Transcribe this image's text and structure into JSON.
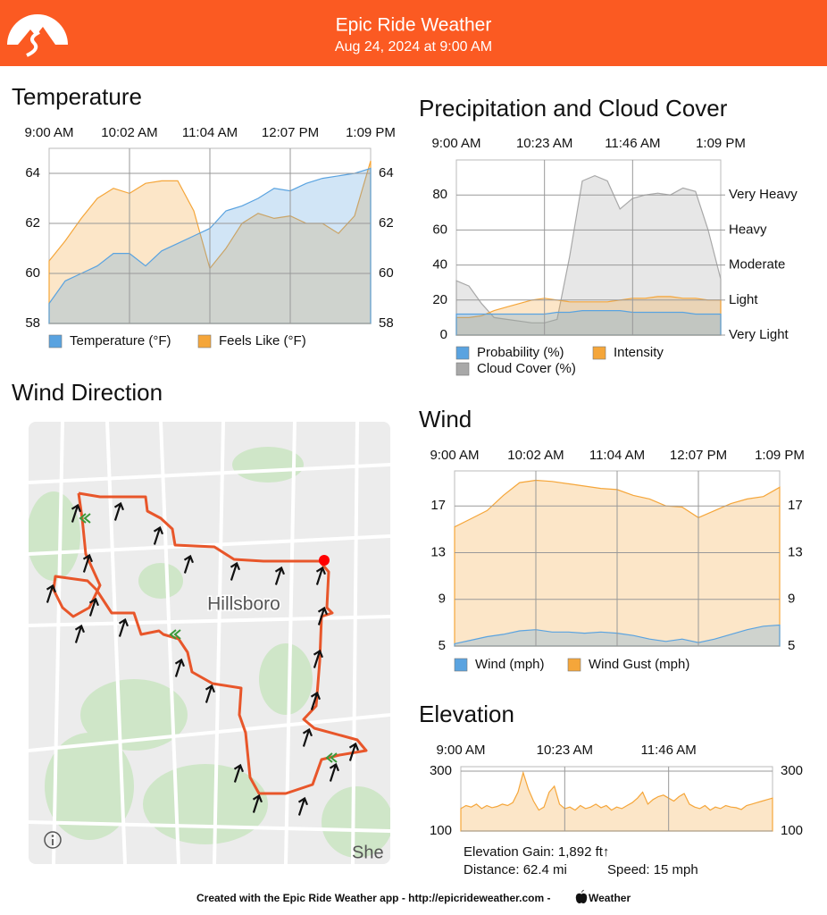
{
  "header": {
    "title": "Epic Ride Weather",
    "subtitle": "Aug 24, 2024 at 9:00 AM"
  },
  "chart_data": [
    {
      "type": "area",
      "title": "Temperature",
      "categories": [
        "9:00 AM",
        null,
        null,
        null,
        null,
        "10:02 AM",
        null,
        null,
        null,
        null,
        "11:04 AM",
        null,
        null,
        null,
        null,
        "12:07 PM",
        null,
        null,
        null,
        null,
        "1:09 PM"
      ],
      "ylim": [
        58,
        65
      ],
      "yticks": [
        58,
        60,
        62,
        64
      ],
      "grid": true,
      "series": [
        {
          "name": "Temperature (°F)",
          "color": "#5aa3e0",
          "values": [
            58.8,
            59.7,
            60.0,
            60.3,
            60.8,
            60.8,
            60.3,
            60.9,
            61.2,
            61.5,
            61.8,
            62.5,
            62.7,
            63.0,
            63.4,
            63.3,
            63.6,
            63.8,
            63.9,
            64.0,
            64.2
          ]
        },
        {
          "name": "Feels Like (°F)",
          "color": "#f5a63a",
          "values": [
            60.5,
            61.3,
            62.2,
            63.0,
            63.4,
            63.2,
            63.6,
            63.7,
            63.7,
            62.5,
            60.2,
            61.0,
            62.0,
            62.4,
            62.2,
            62.3,
            62.0,
            62.0,
            61.6,
            62.3,
            64.5
          ]
        }
      ]
    },
    {
      "type": "area",
      "title": "Precipitation and Cloud Cover",
      "categories": [
        "9:00 AM",
        null,
        null,
        null,
        null,
        null,
        null,
        "10:23 AM",
        null,
        null,
        null,
        null,
        null,
        null,
        "11:46 AM",
        null,
        null,
        null,
        null,
        null,
        null,
        "1:09 PM"
      ],
      "ylim": [
        0,
        100
      ],
      "yticks": [
        0,
        20,
        40,
        60,
        80
      ],
      "y2lim": [
        0,
        100
      ],
      "y2ticks": [
        {
          "value": 0,
          "label": "Very Light"
        },
        {
          "value": 20,
          "label": "Light"
        },
        {
          "value": 40,
          "label": "Moderate"
        },
        {
          "value": 60,
          "label": "Heavy"
        },
        {
          "value": 80,
          "label": "Very Heavy"
        }
      ],
      "grid": true,
      "series": [
        {
          "name": "Probability (%)",
          "color": "#5aa3e0",
          "values": [
            12,
            12,
            12,
            12,
            12,
            12,
            12,
            12,
            13,
            13,
            14,
            14,
            14,
            14,
            13,
            13,
            13,
            13,
            13,
            12,
            12,
            12
          ]
        },
        {
          "name": "Intensity",
          "color": "#f5a63a",
          "axis": "y2",
          "values": [
            10,
            10,
            11,
            14,
            16,
            18,
            20,
            21,
            20,
            19,
            19,
            19,
            19,
            20,
            21,
            21,
            22,
            22,
            21,
            21,
            20,
            20
          ]
        },
        {
          "name": "Cloud Cover (%)",
          "color": "#a8a8a8",
          "values": [
            31,
            28,
            18,
            10,
            9,
            8,
            7,
            7,
            9,
            45,
            88,
            91,
            88,
            72,
            78,
            80,
            81,
            80,
            84,
            82,
            60,
            32
          ]
        }
      ]
    },
    {
      "type": "area",
      "title": "Wind",
      "categories": [
        "9:00 AM",
        null,
        null,
        null,
        null,
        "10:02 AM",
        null,
        null,
        null,
        null,
        "11:04 AM",
        null,
        null,
        null,
        null,
        "12:07 PM",
        null,
        null,
        null,
        null,
        "1:09 PM"
      ],
      "ylim": [
        5,
        20
      ],
      "yticks": [
        5,
        9,
        13,
        17
      ],
      "grid": true,
      "series": [
        {
          "name": "Wind (mph)",
          "color": "#5aa3e0",
          "values": [
            5.2,
            5.5,
            5.8,
            6.0,
            6.3,
            6.4,
            6.2,
            6.2,
            6.1,
            6.2,
            6.1,
            5.9,
            5.6,
            5.4,
            5.6,
            5.3,
            5.6,
            6.0,
            6.4,
            6.7,
            6.8
          ]
        },
        {
          "name": "Wind Gust (mph)",
          "color": "#f5a63a",
          "values": [
            15.2,
            15.9,
            16.6,
            17.9,
            19.0,
            19.2,
            19.1,
            18.9,
            18.7,
            18.5,
            18.4,
            17.9,
            17.6,
            17.0,
            16.9,
            16.0,
            16.6,
            17.2,
            17.6,
            17.8,
            18.6
          ]
        }
      ]
    },
    {
      "type": "area",
      "title": "Elevation",
      "categories": [
        "9:00 AM",
        null,
        null,
        null,
        null,
        null,
        null,
        null,
        null,
        null,
        null,
        null,
        null,
        null,
        null,
        null,
        null,
        null,
        null,
        null,
        "10:23 AM",
        null,
        null,
        null,
        null,
        null,
        null,
        null,
        null,
        null,
        null,
        null,
        null,
        null,
        null,
        null,
        null,
        null,
        null,
        null,
        "11:46 AM",
        null,
        null,
        null,
        null,
        null,
        null,
        null,
        null,
        null,
        null,
        null,
        null,
        null,
        null,
        null,
        null,
        null,
        null,
        null,
        null
      ],
      "ylim": [
        100,
        315
      ],
      "yticks": [
        100,
        300
      ],
      "grid": true,
      "color": "#f5a63a",
      "values": [
        175,
        185,
        180,
        190,
        175,
        185,
        178,
        182,
        190,
        185,
        195,
        230,
        295,
        240,
        200,
        170,
        180,
        230,
        250,
        190,
        175,
        180,
        170,
        185,
        175,
        180,
        190,
        178,
        185,
        170,
        180,
        175,
        185,
        195,
        210,
        230,
        190,
        205,
        215,
        220,
        210,
        200,
        215,
        225,
        190,
        180,
        175,
        185,
        170,
        180,
        175,
        185,
        180,
        178,
        172,
        185,
        190,
        195,
        200,
        205,
        210
      ]
    }
  ],
  "map": {
    "title": "Wind Direction",
    "labels": [
      "Hillsboro",
      "She"
    ]
  },
  "elevation_stats": {
    "gain": "Elevation Gain: 1,892 ft↑",
    "distance": "Distance: 62.4 mi",
    "speed": "Speed: 15 mph"
  },
  "footer": {
    "text": "Created with the Epic Ride Weather app - http://epicrideweather.com -",
    "brand": "Weather"
  }
}
